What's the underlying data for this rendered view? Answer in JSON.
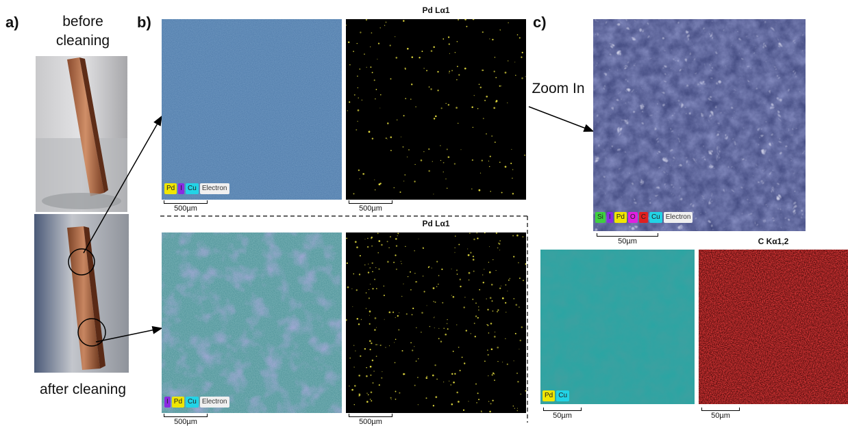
{
  "panels": {
    "a": "a)",
    "b": "b)",
    "c": "c)"
  },
  "photo": {
    "before": "before cleaning",
    "after": "after cleaning"
  },
  "zoom_text": "Zoom In",
  "maps": {
    "top_right_title": "Pd Lα1",
    "bottom_right_title": "Pd Lα1",
    "c_right_title": "C Kα1,2"
  },
  "legends": {
    "b_top": [
      {
        "t": "Pd",
        "c": "#f0e600"
      },
      {
        "t": "I",
        "c": "#8a2be2"
      },
      {
        "t": "Cu",
        "c": "#22d3e6"
      },
      {
        "t": "Electron",
        "c": "#f0f0f0"
      }
    ],
    "b_bottom": [
      {
        "t": "I",
        "c": "#8a2be2"
      },
      {
        "t": "Pd",
        "c": "#f0e600"
      },
      {
        "t": "Cu",
        "c": "#22d3e6"
      },
      {
        "t": "Electron",
        "c": "#f0f0f0"
      }
    ],
    "c_top": [
      {
        "t": "Si",
        "c": "#3fcf3f"
      },
      {
        "t": "I",
        "c": "#8a2be2"
      },
      {
        "t": "Pd",
        "c": "#f0e600"
      },
      {
        "t": "O",
        "c": "#e020e0"
      },
      {
        "t": "C",
        "c": "#e02020"
      },
      {
        "t": "Cu",
        "c": "#22d3e6"
      },
      {
        "t": "Electron",
        "c": "#f0f0f0"
      }
    ],
    "c_bottom": [
      {
        "t": "Pd",
        "c": "#f0e600"
      },
      {
        "t": "Cu",
        "c": "#22d3e6"
      }
    ]
  },
  "scales": {
    "s500": "500µm",
    "s50": "50µm"
  }
}
